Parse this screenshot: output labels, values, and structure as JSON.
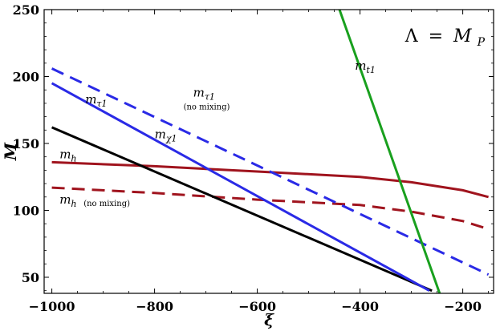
{
  "chart_data": {
    "type": "line",
    "title": "",
    "xlabel": "ξ",
    "ylabel": "M",
    "xlim": [
      -1015,
      -140
    ],
    "ylim": [
      38,
      250
    ],
    "xticks": [
      -1000,
      -800,
      -600,
      -400,
      -200
    ],
    "yticks": [
      50,
      100,
      150,
      200,
      250
    ],
    "grid": false,
    "legend": "none",
    "inset_text": {
      "lhs": "Λ",
      "eq": "=",
      "rhs_main": "M",
      "rhs_sub": "P"
    },
    "series": [
      {
        "name": "m_h",
        "color": "#a0141e",
        "dash": "solid",
        "x": [
          -1000,
          -800,
          -600,
          -400,
          -300,
          -200,
          -150
        ],
        "y": [
          136,
          133,
          129,
          125,
          121,
          115,
          110
        ]
      },
      {
        "name": "m_h (no mixing)",
        "color": "#a0141e",
        "dash": "dashed",
        "x": [
          -1000,
          -800,
          -600,
          -400,
          -300,
          -200,
          -150
        ],
        "y": [
          117,
          113,
          108,
          104,
          99,
          92,
          86
        ]
      },
      {
        "name": "m_χ1",
        "color": "#000000",
        "dash": "solid",
        "x": [
          -1000,
          -260
        ],
        "y": [
          162,
          40
        ]
      },
      {
        "name": "m_τ1",
        "color": "#2a2ae6",
        "dash": "solid",
        "x": [
          -1000,
          -265
        ],
        "y": [
          195,
          40
        ]
      },
      {
        "name": "m_τ1 (no mixing)",
        "color": "#2a2ae6",
        "dash": "dashed",
        "x": [
          -1000,
          -150
        ],
        "y": [
          206,
          52
        ]
      },
      {
        "name": "m_t1",
        "color": "#19a01e",
        "dash": "solid",
        "x": [
          -440,
          -245
        ],
        "y": [
          250,
          38
        ]
      }
    ],
    "labels": [
      {
        "key": "mh",
        "main": "m",
        "sub": "h",
        "small": "",
        "x": -985,
        "y": 139
      },
      {
        "key": "mh_nomix",
        "main": "m",
        "sub": "h",
        "small": "(no mixing)",
        "x": -985,
        "y": 105
      },
      {
        "key": "mchi",
        "main": "m",
        "sub": "χ1",
        "small": "",
        "x": -800,
        "y": 154
      },
      {
        "key": "mtau",
        "main": "m",
        "sub": "τ1",
        "small": "",
        "x": -935,
        "y": 180
      },
      {
        "key": "mtau_nomix",
        "main": "m",
        "sub": "τ1",
        "small": "(no mixing)",
        "x": -725,
        "y": 185
      },
      {
        "key": "mt1",
        "main": "m",
        "sub": "t1",
        "small": "",
        "x": -410,
        "y": 205
      }
    ]
  }
}
